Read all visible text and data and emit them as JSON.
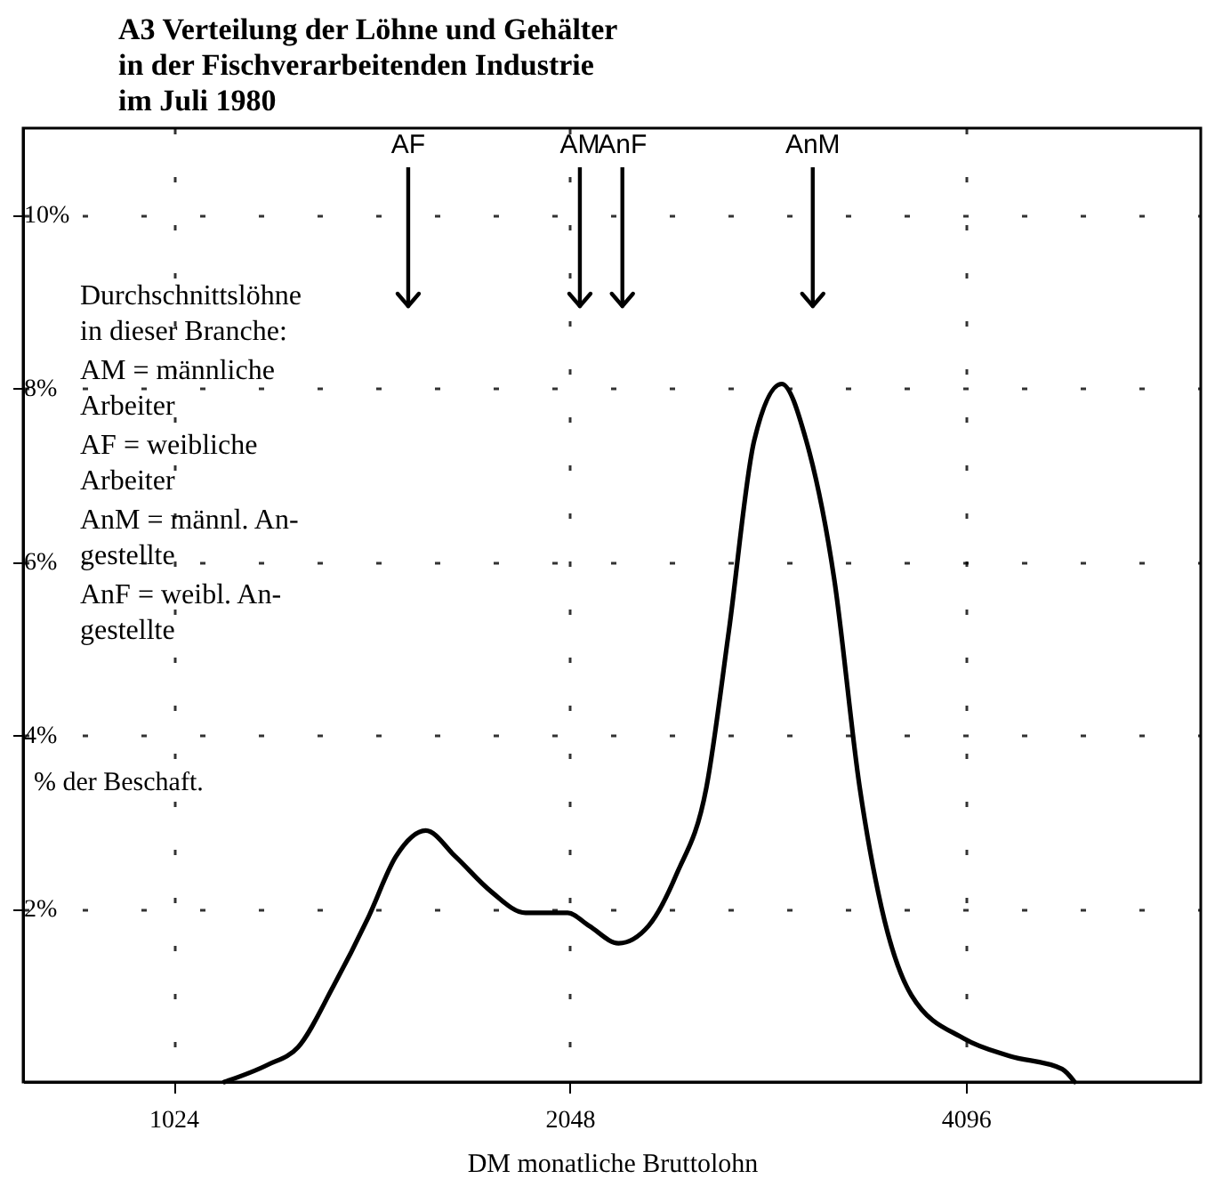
{
  "chart_data": {
    "type": "line",
    "title": "A3 Verteilung der Löhne und Gehälter\nin der Fischverarbeitenden Industrie\nim Juli 1980",
    "xlabel": "DM monatliche Bruttolohn",
    "ylabel": "% der Beschaft.",
    "log": "x",
    "xlim": [
      787,
      6180
    ],
    "xticks": [
      1024,
      2048,
      4096
    ],
    "ylim": [
      0,
      11
    ],
    "yticks": [
      {
        "value": 2,
        "label": "2%"
      },
      {
        "value": 4,
        "label": "4%"
      },
      {
        "value": 6,
        "label": "6%"
      },
      {
        "value": 8,
        "label": "8%"
      },
      {
        "value": 10,
        "label": "10%"
      }
    ],
    "grid": true,
    "marker": "none",
    "line_style": "solid",
    "ref_lines": [
      {
        "axis": "x",
        "value": 1544,
        "label": "AF"
      },
      {
        "axis": "x",
        "value": 2085,
        "label": "AM"
      },
      {
        "axis": "x",
        "value": 2246,
        "label": "AnF"
      },
      {
        "axis": "x",
        "value": 3134,
        "label": "AnM"
      }
    ],
    "series": [
      {
        "color": "#000000",
        "x": [
          1119,
          1208,
          1273,
          1354,
          1440,
          1511,
          1592,
          1677,
          1784,
          1896,
          2041,
          2119,
          2231,
          2351,
          2470,
          2602,
          2706,
          2829,
          2968,
          3098,
          3254,
          3402,
          3536,
          3725,
          4084,
          4421,
          4848,
          4956
        ],
        "values": [
          0,
          0.2,
          0.4,
          1.1,
          1.9,
          2.6,
          2.9,
          2.6,
          2.2,
          1.95,
          1.95,
          1.8,
          1.6,
          1.8,
          2.4,
          3.4,
          5.2,
          7.4,
          8.05,
          7.4,
          5.8,
          3.4,
          2.0,
          1.0,
          0.5,
          0.3,
          0.15,
          0
        ]
      }
    ],
    "annotations": [
      "Durchschnittslöhne\nin dieser Branche:",
      "AM = männliche\nArbeiter",
      "AF = weibliche\nArbeiter",
      "AnM = männl. An-\ngestellte",
      "AnF = weibl. An-\ngestellte"
    ]
  }
}
